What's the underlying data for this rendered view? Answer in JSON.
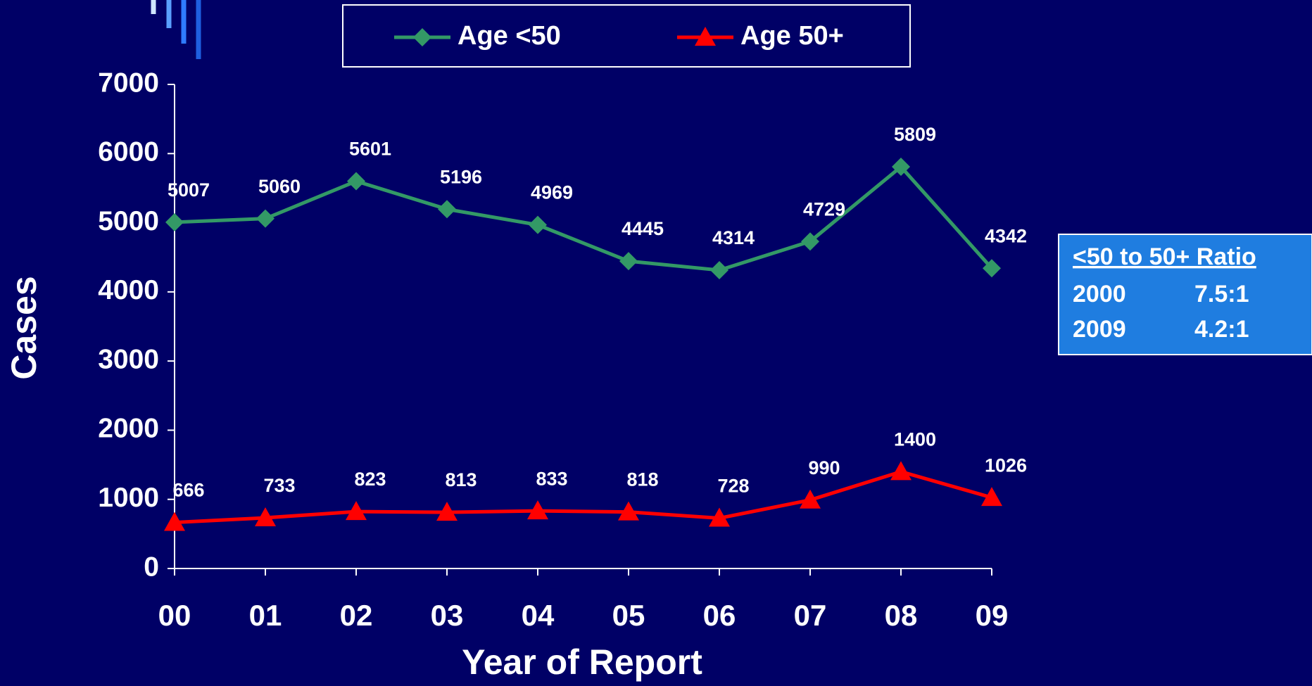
{
  "chart_data": {
    "type": "line",
    "categories": [
      "00",
      "01",
      "02",
      "03",
      "04",
      "05",
      "06",
      "07",
      "08",
      "09"
    ],
    "series": [
      {
        "name": "Age <50",
        "color": "#339966",
        "marker": "diamond",
        "values": [
          5007,
          5060,
          5601,
          5196,
          4969,
          4445,
          4314,
          4729,
          5809,
          4342
        ]
      },
      {
        "name": "Age 50+",
        "color": "#ff0000",
        "marker": "triangle",
        "values": [
          666,
          733,
          823,
          813,
          833,
          818,
          728,
          990,
          1400,
          1026
        ]
      }
    ],
    "ylim": [
      0,
      7000
    ],
    "yticks": [
      0,
      1000,
      2000,
      3000,
      4000,
      5000,
      6000,
      7000
    ],
    "xlabel": "Year of Report",
    "ylabel": "Cases",
    "legend": "top",
    "grid": false
  },
  "ratio_table": {
    "header": "<50 to 50+ Ratio",
    "rows": [
      [
        "2000",
        "7.5:1"
      ],
      [
        "2009",
        "4.2:1"
      ]
    ]
  }
}
